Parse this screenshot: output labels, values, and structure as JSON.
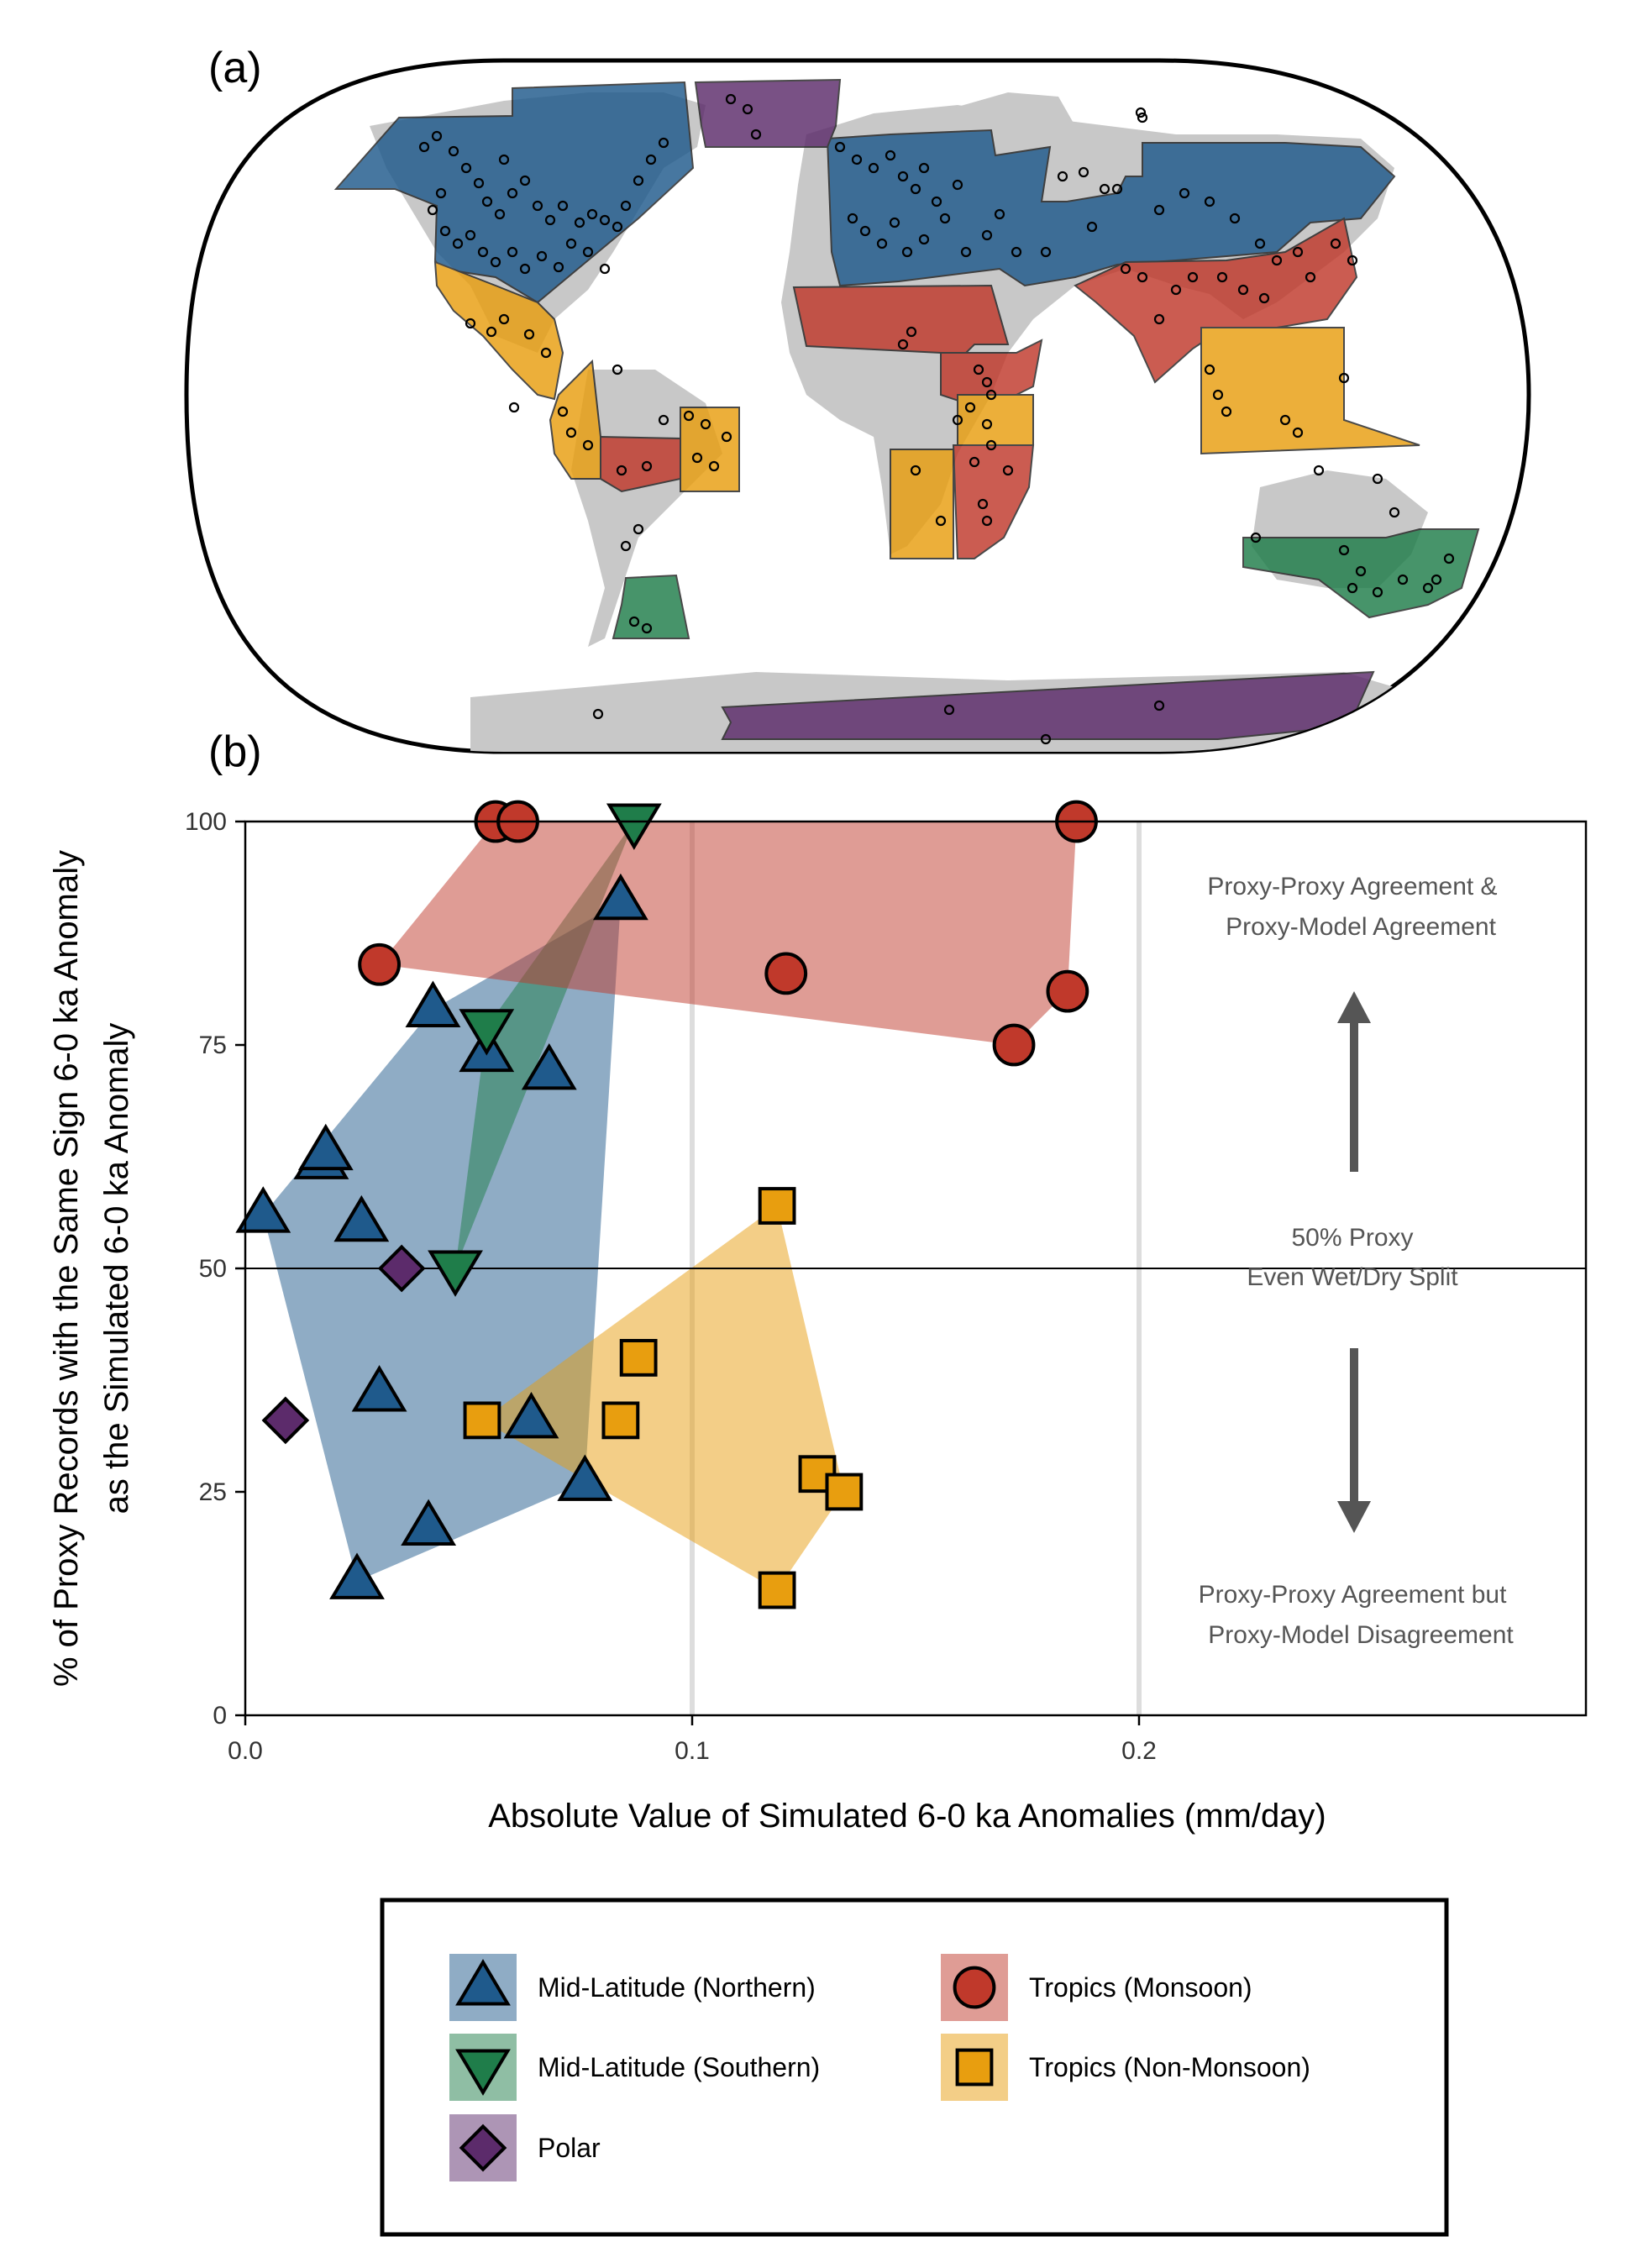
{
  "panel_labels": {
    "a": "(a)",
    "b": "(b)"
  },
  "colors": {
    "mid_lat_north": "#1f5a8c",
    "mid_lat_south": "#1f7d4a",
    "polar": "#5c2b6b",
    "tropics_monsoon": "#c0392b",
    "tropics_non_monsoon": "#e89e0f",
    "land": "#c8c8c8"
  },
  "map": {
    "description_free": true,
    "region_fill_legend_key": [
      "mid_lat_north",
      "mid_lat_south",
      "polar",
      "tropics_monsoon",
      "tropics_non_monsoon"
    ]
  },
  "chart_data": {
    "type": "scatter",
    "xlabel": "Absolute Value of Simulated 6-0 ka Anomalies (mm/day)",
    "ylabel_line1": "% of Proxy Records with the Same Sign 6-0 ka Anomaly",
    "ylabel_line2": "as the Simulated 6-0 ka Anomaly",
    "xlim": [
      0.0,
      0.3
    ],
    "ylim": [
      0,
      100
    ],
    "xticks": [
      0.0,
      0.1,
      0.2
    ],
    "xtick_labels": [
      "0.0",
      "0.1",
      "0.2"
    ],
    "yticks": [
      0,
      25,
      50,
      75,
      100
    ],
    "ytick_labels": [
      "0",
      "25",
      "50",
      "75",
      "100"
    ],
    "vertical_gridlines": [
      0.1,
      0.2
    ],
    "reference_line_y": 50,
    "annotations": {
      "top_line1": "Proxy-Proxy Agreement &",
      "top_line2": "Proxy-Model Agreement",
      "mid_line1": "50% Proxy",
      "mid_line2": "Even Wet/Dry Split",
      "bottom_line1": "Proxy-Proxy Agreement but",
      "bottom_line2": "Proxy-Model Disagreement"
    },
    "series": [
      {
        "name": "Mid-Latitude (Northern)",
        "key": "mid_lat_north",
        "marker": "triangle-up",
        "points": [
          {
            "x": 0.004,
            "y": 56
          },
          {
            "x": 0.017,
            "y": 62
          },
          {
            "x": 0.018,
            "y": 63
          },
          {
            "x": 0.026,
            "y": 55
          },
          {
            "x": 0.025,
            "y": 15
          },
          {
            "x": 0.03,
            "y": 36
          },
          {
            "x": 0.041,
            "y": 21
          },
          {
            "x": 0.042,
            "y": 79
          },
          {
            "x": 0.054,
            "y": 74
          },
          {
            "x": 0.064,
            "y": 33
          },
          {
            "x": 0.068,
            "y": 72
          },
          {
            "x": 0.076,
            "y": 26
          },
          {
            "x": 0.084,
            "y": 91
          }
        ]
      },
      {
        "name": "Mid-Latitude (Southern)",
        "key": "mid_lat_south",
        "marker": "triangle-down",
        "points": [
          {
            "x": 0.047,
            "y": 50
          },
          {
            "x": 0.054,
            "y": 77
          },
          {
            "x": 0.087,
            "y": 100
          }
        ]
      },
      {
        "name": "Polar",
        "key": "polar",
        "marker": "diamond",
        "points": [
          {
            "x": 0.009,
            "y": 33
          },
          {
            "x": 0.035,
            "y": 50
          }
        ]
      },
      {
        "name": "Tropics (Monsoon)",
        "key": "tropics_monsoon",
        "marker": "circle",
        "points": [
          {
            "x": 0.03,
            "y": 84
          },
          {
            "x": 0.056,
            "y": 100
          },
          {
            "x": 0.061,
            "y": 100
          },
          {
            "x": 0.121,
            "y": 83
          },
          {
            "x": 0.172,
            "y": 75
          },
          {
            "x": 0.184,
            "y": 81
          },
          {
            "x": 0.186,
            "y": 100
          }
        ]
      },
      {
        "name": "Tropics (Non-Monsoon)",
        "key": "tropics_non_monsoon",
        "marker": "square",
        "points": [
          {
            "x": 0.053,
            "y": 33
          },
          {
            "x": 0.084,
            "y": 33
          },
          {
            "x": 0.088,
            "y": 40
          },
          {
            "x": 0.119,
            "y": 14
          },
          {
            "x": 0.119,
            "y": 57
          },
          {
            "x": 0.128,
            "y": 27
          },
          {
            "x": 0.134,
            "y": 25
          }
        ]
      }
    ]
  },
  "legend": {
    "items": [
      {
        "label": "Mid-Latitude (Northern)",
        "key": "mid_lat_north",
        "marker": "triangle-up"
      },
      {
        "label": "Mid-Latitude (Southern)",
        "key": "mid_lat_south",
        "marker": "triangle-down"
      },
      {
        "label": "Polar",
        "key": "polar",
        "marker": "diamond"
      },
      {
        "label": "Tropics (Monsoon)",
        "key": "tropics_monsoon",
        "marker": "circle"
      },
      {
        "label": "Tropics (Non-Monsoon)",
        "key": "tropics_non_monsoon",
        "marker": "square"
      }
    ]
  }
}
